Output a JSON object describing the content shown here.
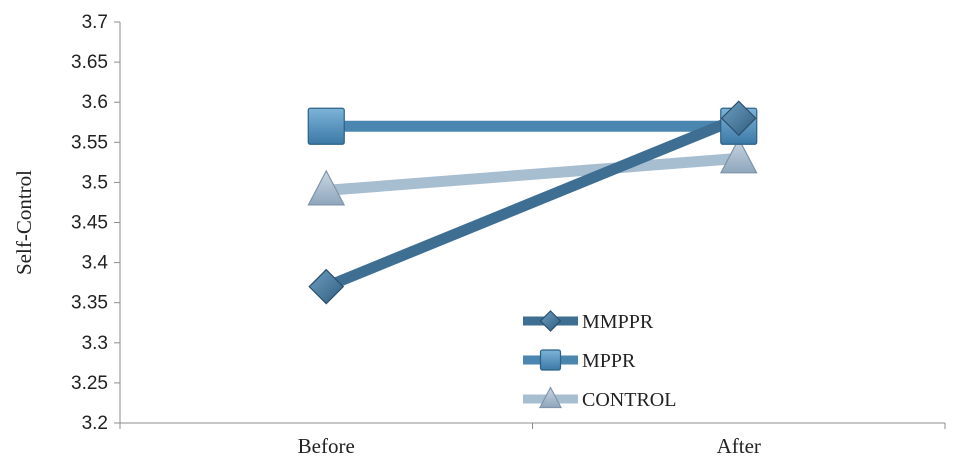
{
  "chart_data": {
    "type": "line",
    "title": "",
    "xlabel": "",
    "ylabel": "Self-Control",
    "categories": [
      "Before",
      "After"
    ],
    "ylim": [
      3.2,
      3.7
    ],
    "yticks": [
      "3.2",
      "3.25",
      "3.3",
      "3.35",
      "3.4",
      "3.45",
      "3.5",
      "3.55",
      "3.6",
      "3.65",
      "3.7"
    ],
    "grid": false,
    "legend_position": "bottom-center",
    "series": [
      {
        "name": "MMPPR",
        "values": [
          3.37,
          3.58
        ],
        "marker": "diamond",
        "color": "#3E6F92"
      },
      {
        "name": "MPPR",
        "values": [
          3.57,
          3.57
        ],
        "marker": "square",
        "color": "#4A86AF"
      },
      {
        "name": "CONTROL",
        "values": [
          3.49,
          3.53
        ],
        "marker": "triangle",
        "color": "#A7BDD0"
      }
    ]
  }
}
